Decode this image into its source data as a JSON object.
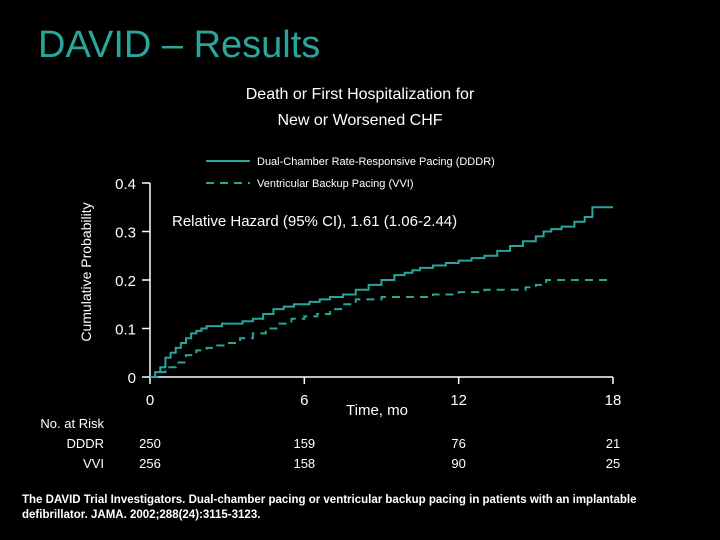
{
  "slide": {
    "title": "DAVID – Results",
    "citation": "The DAVID Trial Investigators. Dual-chamber pacing or ventricular backup pacing in patients with an implantable defibrillator. JAMA. 2002;288(24):3115-3123."
  },
  "chart_data": {
    "type": "line",
    "title_line1": "Death or First Hospitalization for",
    "title_line2": "New or Worsened CHF",
    "xlabel": "Time, mo",
    "ylabel": "Cumulative Probability",
    "xlim": [
      0,
      18
    ],
    "ylim": [
      0,
      0.4
    ],
    "x_ticks": [
      0,
      6,
      12,
      18
    ],
    "x_tick_labels": [
      "0",
      "6",
      "12",
      "18"
    ],
    "y_ticks": [
      0,
      0.1,
      0.2,
      0.3,
      0.4
    ],
    "y_tick_labels": [
      "0",
      "0.1",
      "0.2",
      "0.3",
      "0.4"
    ],
    "grid": false,
    "legend_position": "top",
    "annotation": "Relative Hazard (95% CI), 1.61 (1.06-2.44)",
    "colors": {
      "ddd": "#2aa59a",
      "vvi": "#2aa59a",
      "text": "#ffffff",
      "title": "#2aa59a"
    },
    "series": [
      {
        "name": "Dual-Chamber Rate-Responsive Pacing (DDDR)",
        "style": "solid",
        "x": [
          0,
          0.2,
          0.4,
          0.6,
          0.8,
          1.0,
          1.2,
          1.4,
          1.6,
          1.8,
          2.0,
          2.2,
          2.5,
          2.8,
          3.2,
          3.6,
          4.0,
          4.4,
          4.8,
          5.2,
          5.6,
          6.0,
          6.2,
          6.6,
          7.0,
          7.5,
          8.0,
          8.5,
          9.0,
          9.5,
          9.9,
          10.2,
          10.5,
          11.0,
          11.5,
          12.0,
          12.5,
          13.0,
          13.5,
          14.0,
          14.5,
          15.0,
          15.3,
          15.6,
          16.0,
          16.5,
          16.9,
          17.2,
          18.0
        ],
        "y": [
          0,
          0.01,
          0.02,
          0.04,
          0.05,
          0.06,
          0.07,
          0.08,
          0.09,
          0.095,
          0.1,
          0.105,
          0.105,
          0.11,
          0.11,
          0.115,
          0.12,
          0.13,
          0.14,
          0.145,
          0.15,
          0.15,
          0.155,
          0.16,
          0.165,
          0.17,
          0.18,
          0.19,
          0.2,
          0.21,
          0.215,
          0.22,
          0.225,
          0.23,
          0.235,
          0.24,
          0.245,
          0.25,
          0.26,
          0.27,
          0.28,
          0.29,
          0.3,
          0.305,
          0.31,
          0.32,
          0.33,
          0.35,
          0.35
        ]
      },
      {
        "name": "Ventricular Backup Pacing (VVI)",
        "style": "dashed",
        "x": [
          0,
          0.3,
          0.6,
          1.0,
          1.4,
          1.8,
          2.2,
          2.6,
          3.0,
          3.5,
          4.0,
          4.5,
          5.0,
          5.5,
          6.0,
          6.5,
          7.0,
          7.5,
          8.0,
          9.0,
          10.0,
          11.0,
          12.0,
          13.0,
          14.0,
          14.6,
          15.0,
          15.4,
          16.0,
          17.0,
          18.0
        ],
        "y": [
          0,
          0.01,
          0.02,
          0.03,
          0.045,
          0.055,
          0.06,
          0.065,
          0.07,
          0.08,
          0.09,
          0.1,
          0.11,
          0.12,
          0.125,
          0.13,
          0.14,
          0.15,
          0.16,
          0.165,
          0.165,
          0.17,
          0.175,
          0.18,
          0.18,
          0.185,
          0.19,
          0.2,
          0.2,
          0.2,
          0.2
        ]
      }
    ],
    "risk_table": {
      "header": "No. at Risk",
      "rows": [
        {
          "label": "DDDR",
          "values": [
            "250",
            "159",
            "76",
            "21"
          ]
        },
        {
          "label": "VVI",
          "values": [
            "256",
            "158",
            "90",
            "25"
          ]
        }
      ]
    }
  }
}
